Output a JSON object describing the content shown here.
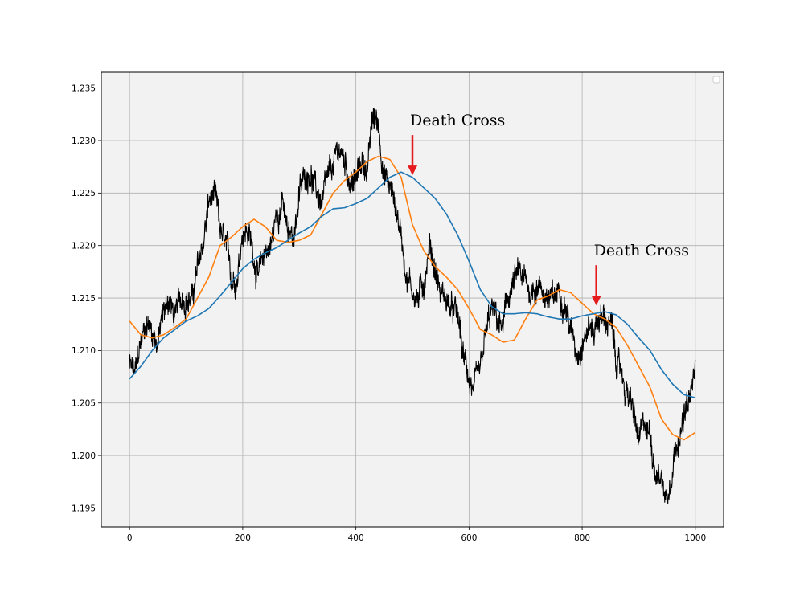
{
  "chart_data": {
    "type": "line",
    "title": "",
    "xlabel": "",
    "ylabel": "",
    "xlim": [
      -50,
      1050
    ],
    "ylim": [
      1.1932,
      1.2365
    ],
    "xticks": [
      0,
      200,
      400,
      600,
      800,
      1000
    ],
    "xtick_labels": [
      "0",
      "200",
      "400",
      "600",
      "800",
      "1000"
    ],
    "yticks": [
      1.195,
      1.2,
      1.205,
      1.21,
      1.215,
      1.22,
      1.225,
      1.23,
      1.235
    ],
    "ytick_labels": [
      "1.195",
      "1.200",
      "1.205",
      "1.210",
      "1.215",
      "1.220",
      "1.225",
      "1.230",
      "1.235"
    ],
    "grid": true,
    "legend": "upper right (empty)",
    "plot_background": "#f2f2f2",
    "series": [
      {
        "color": "#000000",
        "style": "noisy price",
        "x": [
          0,
          10,
          20,
          30,
          40,
          50,
          60,
          70,
          80,
          90,
          100,
          110,
          120,
          130,
          140,
          150,
          160,
          170,
          180,
          190,
          200,
          210,
          220,
          230,
          240,
          250,
          260,
          270,
          280,
          290,
          300,
          310,
          320,
          330,
          340,
          350,
          360,
          370,
          380,
          390,
          400,
          410,
          420,
          430,
          440,
          450,
          460,
          470,
          480,
          490,
          500,
          510,
          520,
          530,
          540,
          550,
          560,
          570,
          580,
          590,
          600,
          610,
          620,
          630,
          640,
          650,
          660,
          670,
          680,
          690,
          700,
          710,
          720,
          730,
          740,
          750,
          760,
          770,
          780,
          790,
          800,
          810,
          820,
          830,
          840,
          850,
          860,
          870,
          880,
          890,
          900,
          910,
          920,
          930,
          940,
          950,
          960,
          970,
          980,
          990,
          1000
        ],
        "values": [
          1.2085,
          1.2075,
          1.2105,
          1.213,
          1.212,
          1.211,
          1.2135,
          1.215,
          1.213,
          1.2145,
          1.2155,
          1.215,
          1.2175,
          1.22,
          1.224,
          1.2245,
          1.221,
          1.2195,
          1.2165,
          1.2175,
          1.222,
          1.2215,
          1.219,
          1.217,
          1.2195,
          1.22,
          1.223,
          1.2245,
          1.2205,
          1.221,
          1.225,
          1.2265,
          1.2275,
          1.225,
          1.224,
          1.2255,
          1.227,
          1.229,
          1.228,
          1.2265,
          1.226,
          1.228,
          1.2275,
          1.232,
          1.2315,
          1.227,
          1.2255,
          1.224,
          1.221,
          1.2175,
          1.216,
          1.215,
          1.2165,
          1.2205,
          1.218,
          1.2155,
          1.215,
          1.2135,
          1.213,
          1.209,
          1.2075,
          1.206,
          1.207,
          1.211,
          1.2135,
          1.2125,
          1.212,
          1.215,
          1.2165,
          1.217,
          1.216,
          1.2155,
          1.2165,
          1.216,
          1.215,
          1.2145,
          1.216,
          1.215,
          1.212,
          1.21,
          1.2115,
          1.2125,
          1.212,
          1.2135,
          1.213,
          1.2125,
          1.209,
          1.2075,
          1.206,
          1.204,
          1.201,
          1.2025,
          1.202,
          1.199,
          1.198,
          1.196,
          1.2,
          1.2025,
          1.2035,
          1.205,
          1.208
        ]
      },
      {
        "color": "#ff7f0e",
        "style": "short moving average",
        "x": [
          0,
          20,
          40,
          60,
          80,
          100,
          120,
          140,
          160,
          180,
          200,
          220,
          240,
          260,
          280,
          300,
          320,
          340,
          360,
          380,
          400,
          420,
          440,
          460,
          480,
          500,
          520,
          540,
          560,
          580,
          600,
          620,
          640,
          660,
          680,
          700,
          720,
          740,
          760,
          780,
          800,
          820,
          840,
          860,
          880,
          900,
          920,
          940,
          960,
          980,
          1000
        ],
        "values": [
          1.2128,
          1.2115,
          1.2112,
          1.2115,
          1.2122,
          1.213,
          1.215,
          1.217,
          1.22,
          1.2208,
          1.2218,
          1.2225,
          1.2218,
          1.2205,
          1.2203,
          1.2205,
          1.221,
          1.223,
          1.225,
          1.2262,
          1.227,
          1.228,
          1.2285,
          1.2282,
          1.2265,
          1.222,
          1.2195,
          1.218,
          1.217,
          1.2158,
          1.214,
          1.212,
          1.2115,
          1.2108,
          1.211,
          1.213,
          1.2148,
          1.2152,
          1.2158,
          1.2155,
          1.2145,
          1.2135,
          1.213,
          1.2122,
          1.2105,
          1.2085,
          1.2065,
          1.2035,
          1.202,
          1.2015,
          1.2022
        ]
      },
      {
        "color": "#1f77b4",
        "style": "long moving average",
        "x": [
          0,
          20,
          40,
          60,
          80,
          100,
          120,
          140,
          160,
          180,
          200,
          220,
          240,
          260,
          280,
          300,
          320,
          340,
          360,
          380,
          400,
          420,
          440,
          460,
          480,
          500,
          520,
          540,
          560,
          580,
          600,
          620,
          640,
          660,
          680,
          700,
          720,
          740,
          760,
          780,
          800,
          820,
          840,
          860,
          880,
          900,
          920,
          940,
          960,
          980,
          1000
        ],
        "values": [
          1.2073,
          1.2085,
          1.21,
          1.2112,
          1.212,
          1.2128,
          1.2133,
          1.214,
          1.2152,
          1.2165,
          1.2178,
          1.2187,
          1.2193,
          1.2198,
          1.2205,
          1.2212,
          1.2218,
          1.2228,
          1.2235,
          1.2236,
          1.224,
          1.2245,
          1.2255,
          1.2265,
          1.227,
          1.2265,
          1.2255,
          1.2245,
          1.223,
          1.221,
          1.2185,
          1.2158,
          1.2142,
          1.2135,
          1.2135,
          1.2136,
          1.2135,
          1.2132,
          1.213,
          1.213,
          1.2133,
          1.2135,
          1.2137,
          1.2134,
          1.2125,
          1.2112,
          1.21,
          1.2082,
          1.2068,
          1.2058,
          1.2055
        ]
      }
    ],
    "annotations": [
      {
        "text": "Death Cross",
        "x": 500,
        "y": 1.2267
      },
      {
        "text": "Death Cross",
        "x": 825,
        "y": 1.2143
      }
    ],
    "annotation_arrow_color": "#e41a1c"
  }
}
